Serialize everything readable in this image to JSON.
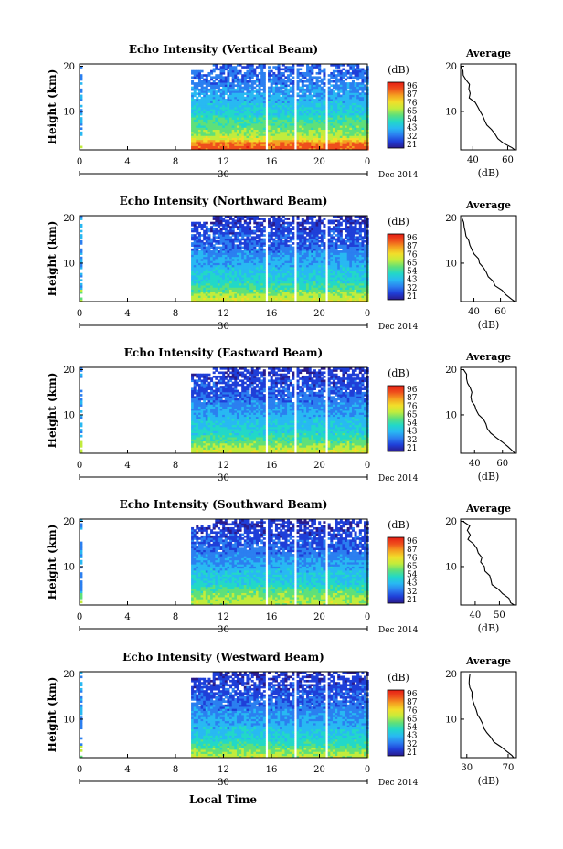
{
  "figure": {
    "x_label": "Local Time",
    "date_label": "Dec 2014",
    "day_label": "30",
    "y_label": "Height (km)",
    "colorbar_unit": "(dB)",
    "average_title": "Average",
    "average_unit": "(dB)"
  },
  "colors": {
    "scale": [
      "#2a1b8c",
      "#1f3fd8",
      "#2b7ff0",
      "#28b9f2",
      "#22d8c8",
      "#5ee07a",
      "#c2ec3c",
      "#f2de2a",
      "#f5a020",
      "#ef4f1c",
      "#e61e14"
    ]
  },
  "chart_data": [
    {
      "type": "heatmap",
      "title": "Echo Intensity (Vertical Beam)",
      "x_ticks": [
        "0",
        "4",
        "8",
        "12",
        "16",
        "20",
        "0"
      ],
      "y_ticks": [
        "20",
        "10"
      ],
      "xlim": [
        0,
        24
      ],
      "ylim": [
        1.5,
        20.5
      ],
      "colorbar_ticks": [
        "96",
        "87",
        "76",
        "65",
        "54",
        "43",
        "32",
        "21"
      ],
      "gaps": [
        [
          15.4,
          15.7
        ],
        [
          17.8,
          18.1
        ],
        [
          20.4,
          20.7
        ]
      ],
      "data_start_hour": 9.3,
      "intensity_profile": [
        [
          2,
          88
        ],
        [
          3,
          85
        ],
        [
          4,
          70
        ],
        [
          5,
          62
        ],
        [
          6,
          60
        ],
        [
          8,
          55
        ],
        [
          10,
          48
        ],
        [
          12,
          44
        ],
        [
          14,
          40
        ],
        [
          16,
          36
        ],
        [
          18,
          34
        ],
        [
          20,
          32
        ]
      ],
      "average": {
        "x_ticks": [
          "40",
          "60"
        ],
        "y_ticks": [
          "20",
          "10"
        ],
        "xlim": [
          33,
          65
        ],
        "profile": [
          [
            1.5,
            64
          ],
          [
            2,
            62
          ],
          [
            3,
            58
          ],
          [
            4,
            55
          ],
          [
            5,
            53
          ],
          [
            6,
            51
          ],
          [
            7,
            49
          ],
          [
            8,
            47
          ],
          [
            9,
            46
          ],
          [
            10,
            45
          ],
          [
            11,
            42
          ],
          [
            12,
            41
          ],
          [
            13,
            39
          ],
          [
            14,
            38
          ],
          [
            15,
            37
          ],
          [
            16,
            37
          ],
          [
            17,
            36
          ],
          [
            18,
            35
          ],
          [
            19,
            35
          ],
          [
            20,
            34
          ]
        ]
      }
    },
    {
      "type": "heatmap",
      "title": "Echo Intensity (Northward Beam)",
      "x_ticks": [
        "0",
        "4",
        "8",
        "12",
        "16",
        "20",
        "0"
      ],
      "y_ticks": [
        "20",
        "10"
      ],
      "xlim": [
        0,
        24
      ],
      "ylim": [
        1.5,
        20.5
      ],
      "colorbar_ticks": [
        "96",
        "87",
        "76",
        "65",
        "54",
        "43",
        "32",
        "21"
      ],
      "gaps": [
        [
          15.4,
          15.7
        ],
        [
          17.8,
          18.1
        ],
        [
          20.4,
          20.7
        ]
      ],
      "data_start_hour": 9.3,
      "intensity_profile": [
        [
          2,
          68
        ],
        [
          3,
          64
        ],
        [
          4,
          58
        ],
        [
          5,
          54
        ],
        [
          6,
          50
        ],
        [
          8,
          46
        ],
        [
          10,
          42
        ],
        [
          12,
          38
        ],
        [
          14,
          33
        ],
        [
          16,
          30
        ],
        [
          18,
          28
        ],
        [
          20,
          26
        ]
      ],
      "average": {
        "x_ticks": [
          "40",
          "60"
        ],
        "y_ticks": [
          "20",
          "10"
        ],
        "xlim": [
          30,
          72
        ],
        "profile": [
          [
            1.5,
            71
          ],
          [
            2,
            69
          ],
          [
            3,
            65
          ],
          [
            4,
            61
          ],
          [
            5,
            57
          ],
          [
            6,
            54
          ],
          [
            7,
            51
          ],
          [
            8,
            49
          ],
          [
            9,
            47
          ],
          [
            10,
            45
          ],
          [
            11,
            43
          ],
          [
            12,
            41
          ],
          [
            13,
            39
          ],
          [
            14,
            37
          ],
          [
            15,
            36
          ],
          [
            16,
            35
          ],
          [
            17,
            34
          ],
          [
            18,
            33
          ],
          [
            19,
            33
          ],
          [
            20,
            32
          ]
        ]
      }
    },
    {
      "type": "heatmap",
      "title": "Echo Intensity (Eastward Beam)",
      "x_ticks": [
        "0",
        "4",
        "8",
        "12",
        "16",
        "20",
        "0"
      ],
      "y_ticks": [
        "20",
        "10"
      ],
      "xlim": [
        0,
        24
      ],
      "ylim": [
        1.5,
        20.5
      ],
      "colorbar_ticks": [
        "96",
        "87",
        "76",
        "65",
        "54",
        "43",
        "32",
        "21"
      ],
      "gaps": [
        [
          15.4,
          15.7
        ],
        [
          17.8,
          18.1
        ],
        [
          20.4,
          20.7
        ]
      ],
      "data_start_hour": 9.3,
      "intensity_profile": [
        [
          2,
          68
        ],
        [
          3,
          64
        ],
        [
          4,
          58
        ],
        [
          5,
          54
        ],
        [
          6,
          50
        ],
        [
          8,
          46
        ],
        [
          10,
          42
        ],
        [
          12,
          38
        ],
        [
          14,
          33
        ],
        [
          16,
          30
        ],
        [
          18,
          28
        ],
        [
          20,
          26
        ]
      ],
      "average": {
        "x_ticks": [
          "40",
          "60"
        ],
        "y_ticks": [
          "20",
          "10"
        ],
        "xlim": [
          30,
          70
        ],
        "profile": [
          [
            1.5,
            69
          ],
          [
            2,
            67
          ],
          [
            3,
            63
          ],
          [
            4,
            59
          ],
          [
            5,
            55
          ],
          [
            6,
            52
          ],
          [
            7,
            50
          ],
          [
            8,
            48
          ],
          [
            9,
            46
          ],
          [
            10,
            44
          ],
          [
            11,
            42
          ],
          [
            12,
            40
          ],
          [
            13,
            39
          ],
          [
            14,
            38
          ],
          [
            15,
            37
          ],
          [
            16,
            36
          ],
          [
            17,
            35
          ],
          [
            18,
            34
          ],
          [
            19,
            34
          ],
          [
            20,
            33
          ]
        ]
      }
    },
    {
      "type": "heatmap",
      "title": "Echo Intensity (Southward Beam)",
      "x_ticks": [
        "0",
        "4",
        "8",
        "12",
        "16",
        "20",
        "0"
      ],
      "y_ticks": [
        "20",
        "10"
      ],
      "xlim": [
        0,
        24
      ],
      "ylim": [
        1.5,
        20.5
      ],
      "colorbar_ticks": [
        "96",
        "87",
        "76",
        "65",
        "54",
        "43",
        "32",
        "21"
      ],
      "gaps": [
        [
          15.4,
          15.7
        ],
        [
          17.8,
          18.1
        ],
        [
          20.4,
          20.7
        ]
      ],
      "data_start_hour": 9.3,
      "intensity_profile": [
        [
          2,
          66
        ],
        [
          3,
          64
        ],
        [
          4,
          60
        ],
        [
          5,
          56
        ],
        [
          6,
          50
        ],
        [
          8,
          46
        ],
        [
          10,
          42
        ],
        [
          12,
          38
        ],
        [
          14,
          33
        ],
        [
          16,
          30
        ],
        [
          18,
          28
        ],
        [
          20,
          26
        ]
      ],
      "average": {
        "x_ticks": [
          "40",
          "50"
        ],
        "y_ticks": [
          "20",
          "10"
        ],
        "xlim": [
          34,
          57
        ],
        "profile": [
          [
            1.5,
            56
          ],
          [
            2,
            55
          ],
          [
            3,
            54
          ],
          [
            4,
            52
          ],
          [
            5,
            50
          ],
          [
            6,
            48
          ],
          [
            7,
            47
          ],
          [
            8,
            46
          ],
          [
            9,
            45
          ],
          [
            10,
            44
          ],
          [
            11,
            43
          ],
          [
            12,
            42
          ],
          [
            13,
            41
          ],
          [
            14,
            40
          ],
          [
            15,
            39
          ],
          [
            16,
            38
          ],
          [
            17,
            38
          ],
          [
            18,
            37
          ],
          [
            19,
            37
          ],
          [
            20,
            36
          ]
        ]
      }
    },
    {
      "type": "heatmap",
      "title": "Echo Intensity (Westward Beam)",
      "x_ticks": [
        "0",
        "4",
        "8",
        "12",
        "16",
        "20",
        "0"
      ],
      "y_ticks": [
        "20",
        "10"
      ],
      "xlim": [
        0,
        24
      ],
      "ylim": [
        1.5,
        20.5
      ],
      "colorbar_ticks": [
        "96",
        "87",
        "76",
        "65",
        "54",
        "43",
        "32",
        "21"
      ],
      "gaps": [
        [
          15.4,
          15.7
        ],
        [
          17.8,
          18.1
        ],
        [
          20.4,
          20.7
        ]
      ],
      "data_start_hour": 9.3,
      "intensity_profile": [
        [
          2,
          66
        ],
        [
          3,
          62
        ],
        [
          4,
          56
        ],
        [
          5,
          52
        ],
        [
          6,
          48
        ],
        [
          8,
          44
        ],
        [
          10,
          40
        ],
        [
          12,
          37
        ],
        [
          14,
          33
        ],
        [
          16,
          30
        ],
        [
          18,
          28
        ],
        [
          20,
          26
        ]
      ],
      "average": {
        "x_ticks": [
          "30",
          "70"
        ],
        "y_ticks": [
          "20",
          "10"
        ],
        "xlim": [
          24,
          78
        ],
        "profile": [
          [
            1.5,
            76
          ],
          [
            2,
            73
          ],
          [
            3,
            68
          ],
          [
            4,
            62
          ],
          [
            5,
            57
          ],
          [
            6,
            53
          ],
          [
            7,
            50
          ],
          [
            8,
            47
          ],
          [
            9,
            45
          ],
          [
            10,
            43
          ],
          [
            11,
            41
          ],
          [
            12,
            39
          ],
          [
            13,
            37
          ],
          [
            14,
            36
          ],
          [
            15,
            35
          ],
          [
            16,
            34
          ],
          [
            17,
            33
          ],
          [
            18,
            33
          ],
          [
            19,
            32
          ],
          [
            20,
            32
          ]
        ]
      }
    }
  ]
}
